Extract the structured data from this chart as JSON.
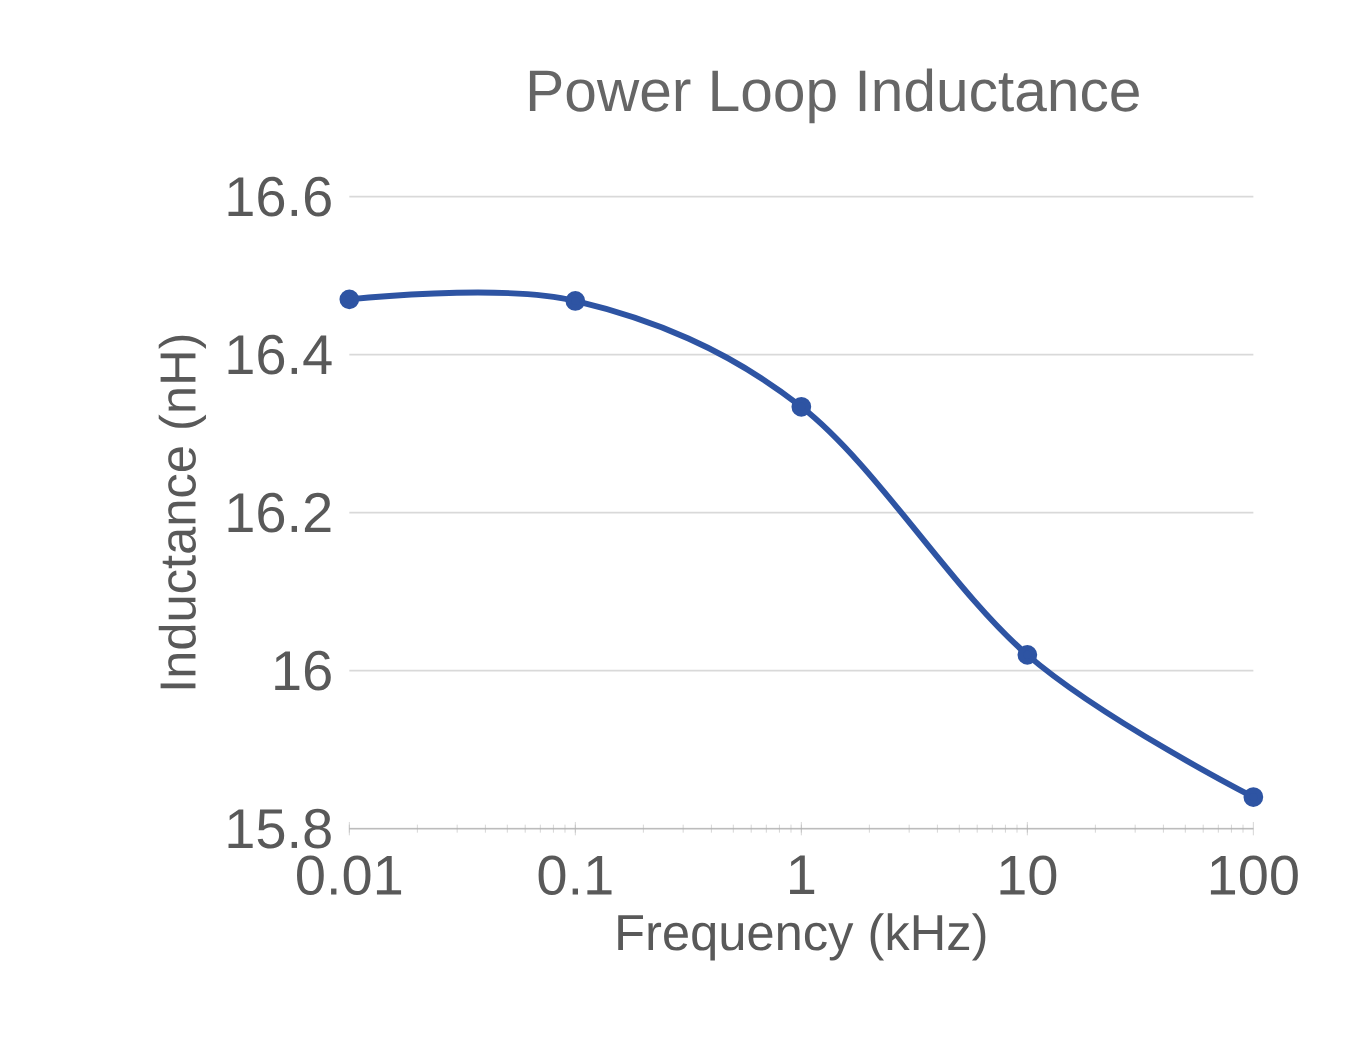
{
  "chart_data": {
    "type": "line",
    "title": "Power Loop Inductance",
    "xlabel": "Frequency (kHz)",
    "ylabel": "Inductance (nH)",
    "x": [
      0.01,
      0.1,
      1,
      10,
      100
    ],
    "series": [
      {
        "color": "#2e54a3",
        "values": [
          16.47,
          16.468,
          16.334,
          16.02,
          15.84
        ]
      }
    ],
    "log": "x",
    "xlim": [
      0.01,
      100
    ],
    "xticks": [
      0.01,
      0.1,
      1,
      10,
      100
    ],
    "ylim": [
      15.8,
      16.6
    ],
    "yticks": [
      15.8,
      16,
      16.2,
      16.4,
      16.6
    ],
    "grid": "y",
    "marker": "circle",
    "line_style": "solid"
  }
}
